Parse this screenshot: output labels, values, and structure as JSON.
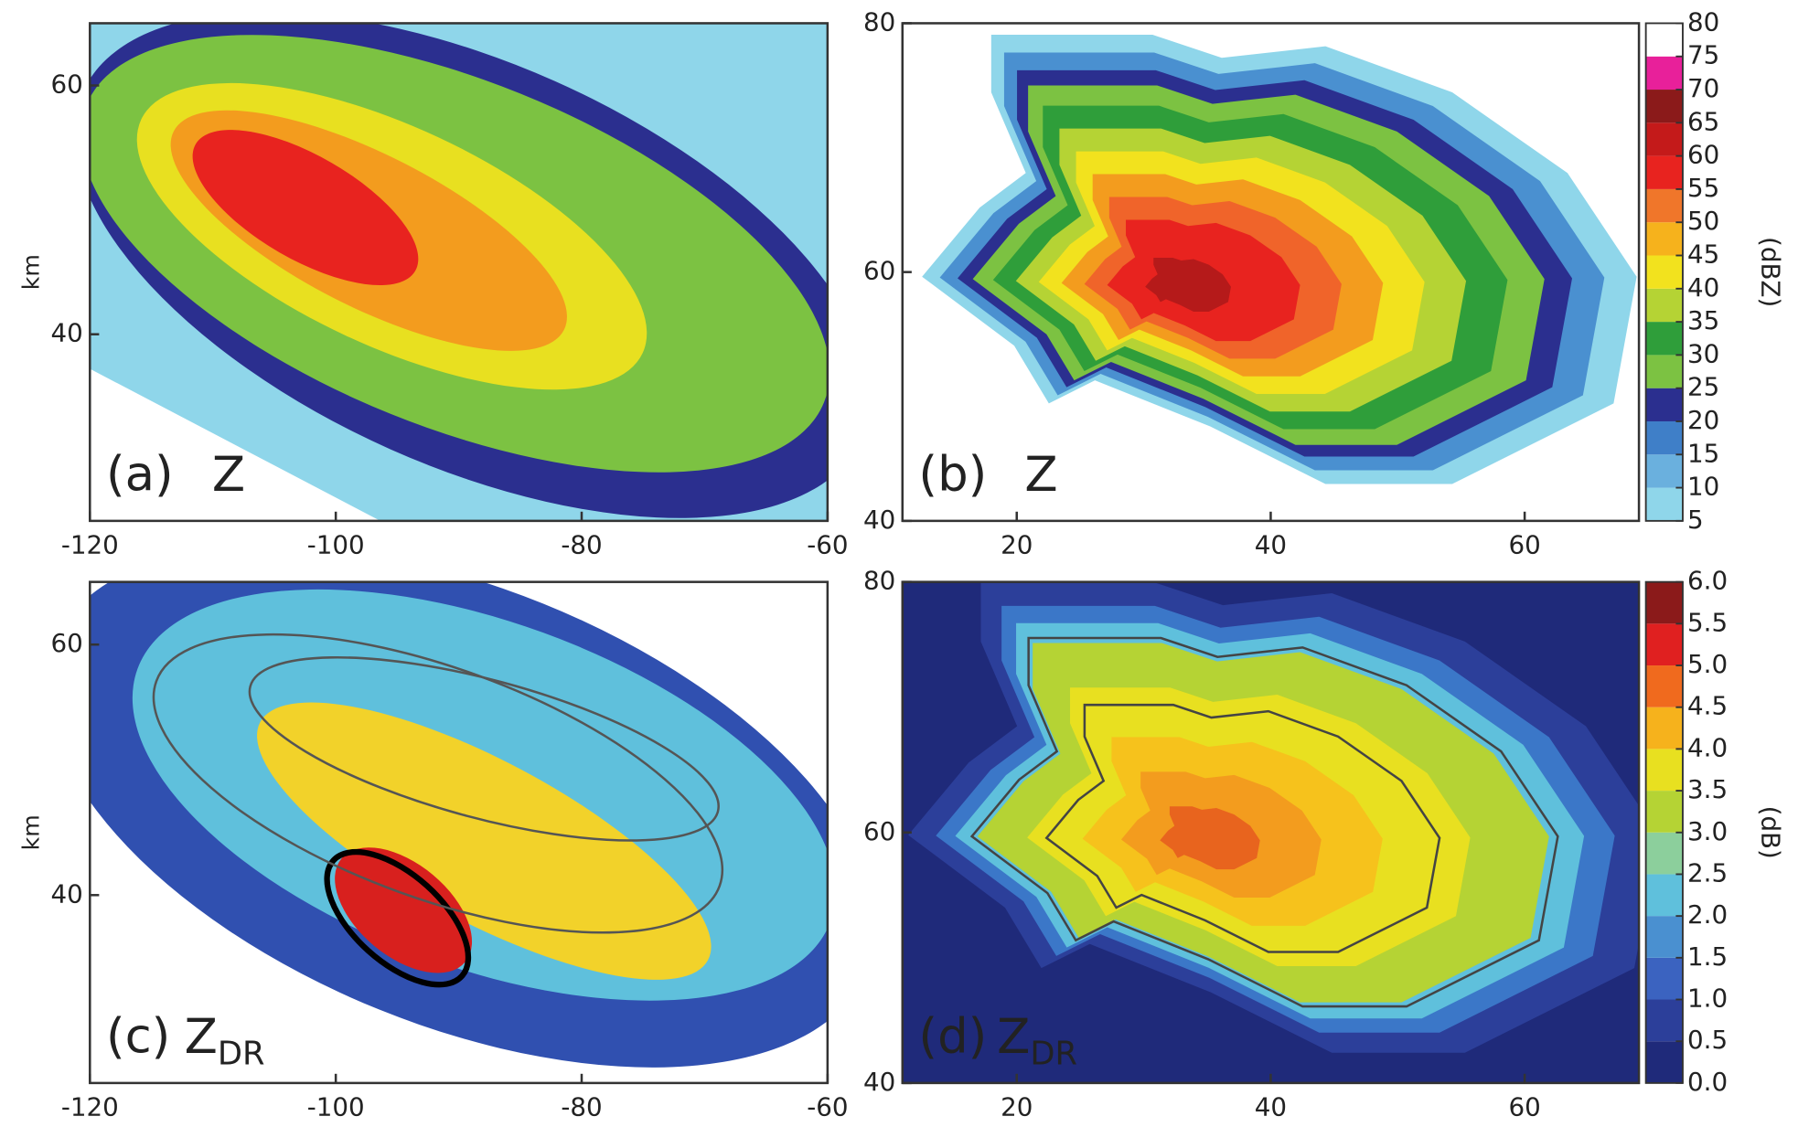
{
  "chart_data": [
    {
      "type": "heatmap",
      "panel_label": "(a)",
      "variable": "Z",
      "ylabel": "km",
      "xlim": [
        -120,
        -60
      ],
      "ylim": [
        25,
        65
      ],
      "xticks": [
        -120,
        -100,
        -80,
        -60
      ],
      "yticks": [
        40,
        60
      ]
    },
    {
      "type": "heatmap",
      "panel_label": "(b)",
      "variable": "Z",
      "xlim": [
        11,
        69
      ],
      "ylim": [
        40,
        80
      ],
      "xticks": [
        20,
        40,
        60
      ],
      "yticks": [
        40,
        60,
        80
      ],
      "colorbar": {
        "label": "(dBZ)",
        "ticks": [
          5,
          10,
          15,
          20,
          25,
          30,
          35,
          40,
          45,
          50,
          55,
          60,
          65,
          70,
          75,
          80
        ],
        "colors": [
          "#8fd6ea",
          "#6ab0de",
          "#3f7fc8",
          "#2b2f8f",
          "#7cc242",
          "#2f9e3a",
          "#b5d334",
          "#f2e21e",
          "#f6b21c",
          "#f0762a",
          "#e8231f",
          "#c41a1a",
          "#8b1a1a",
          "#e8209a",
          "#ffffff"
        ]
      }
    },
    {
      "type": "heatmap",
      "panel_label": "(c)",
      "variable": "Z",
      "subscript": "DR",
      "ylabel": "km",
      "xlim": [
        -120,
        -60
      ],
      "ylim": [
        25,
        65
      ],
      "xticks": [
        -120,
        -100,
        -80,
        -60
      ],
      "yticks": [
        40,
        60
      ]
    },
    {
      "type": "heatmap",
      "panel_label": "(d)",
      "variable": "Z",
      "subscript": "DR",
      "xlim": [
        11,
        69
      ],
      "ylim": [
        40,
        80
      ],
      "xticks": [
        20,
        40,
        60
      ],
      "yticks": [
        40,
        60,
        80
      ],
      "colorbar": {
        "label": "(dB)",
        "ticks": [
          {
            "value": 0,
            "label": "0.0"
          },
          0.5,
          {
            "value": 1,
            "label": "1.0"
          },
          1.5,
          {
            "value": 2,
            "label": "2.0"
          },
          2.5,
          {
            "value": 3,
            "label": "3.0"
          },
          3.5,
          {
            "value": 4,
            "label": "4.0"
          },
          4.5,
          {
            "value": 5,
            "label": "5.0"
          },
          5.5,
          {
            "value": 6,
            "label": "6.0"
          }
        ],
        "colors": [
          "#1f2a7a",
          "#2c3f9a",
          "#3b63c0",
          "#4a90d0",
          "#5fc0dc",
          "#8ccf9c",
          "#b5d334",
          "#e8e020",
          "#f6b21c",
          "#f06a1e",
          "#e02020",
          "#8b1a1a"
        ]
      }
    }
  ]
}
